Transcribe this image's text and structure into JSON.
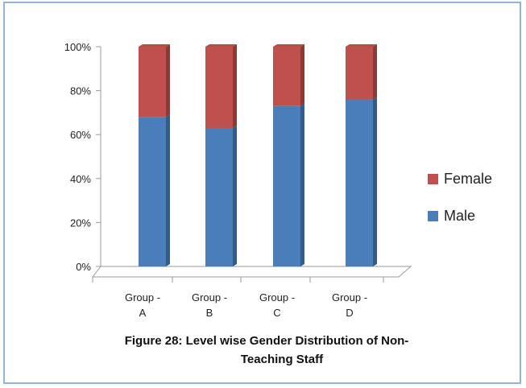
{
  "chart_data": {
    "type": "bar",
    "stacked": true,
    "percent": true,
    "categories": [
      [
        "Group -",
        "A"
      ],
      [
        "Group -",
        "B"
      ],
      [
        "Group -",
        "C"
      ],
      [
        "Group -",
        "D"
      ]
    ],
    "series": [
      {
        "name": "Male",
        "values": [
          68,
          63,
          73,
          76
        ],
        "color": "#4a7ebb"
      },
      {
        "name": "Female",
        "values": [
          32,
          37,
          27,
          24
        ],
        "color": "#c0504d"
      }
    ],
    "yticks": [
      "0%",
      "20%",
      "40%",
      "60%",
      "80%",
      "100%"
    ],
    "ylim": [
      0,
      100
    ],
    "legend": {
      "position": "right",
      "order": [
        "Female",
        "Male"
      ]
    },
    "grid": false,
    "caption": [
      "Figure 28: Level wise Gender Distribution  of Non-",
      "Teaching Staff"
    ]
  }
}
